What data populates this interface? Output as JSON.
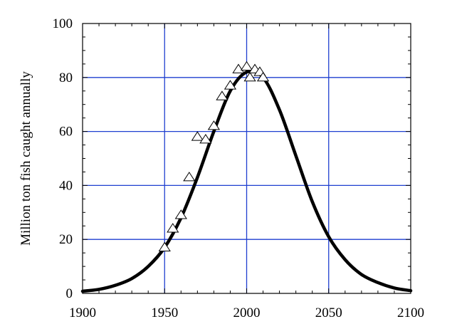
{
  "chart_data": {
    "type": "scatter",
    "title": "",
    "xlabel": "",
    "ylabel": "Million ton fish caught annually",
    "xlim": [
      1900,
      2100
    ],
    "ylim": [
      0,
      100
    ],
    "xticks": [
      1900,
      1950,
      2000,
      2050,
      2100
    ],
    "yticks": [
      0,
      20,
      40,
      60,
      80,
      100
    ],
    "grid": true,
    "grid_color": "#1f3fd0",
    "curve_color": "#000000",
    "marker": "open-triangle",
    "legend": "none",
    "series": [
      {
        "kind": "points",
        "x": [
          1950,
          1955,
          1960,
          1965,
          1970,
          1975,
          1980,
          1985,
          1990,
          1995,
          2000,
          2002,
          2005,
          2008,
          2010
        ],
        "y": [
          17,
          24,
          29,
          43,
          58,
          57,
          62,
          73,
          77,
          83,
          84,
          80,
          83,
          82,
          80
        ]
      },
      {
        "kind": "curve",
        "x": [
          1900,
          1910,
          1920,
          1930,
          1940,
          1950,
          1960,
          1970,
          1980,
          1990,
          2000,
          2010,
          2020,
          2030,
          2040,
          2050,
          2060,
          2070,
          2080,
          2090,
          2100
        ],
        "y": [
          0.8,
          1.5,
          3.0,
          5.5,
          10.0,
          17.0,
          28.0,
          43.0,
          60.0,
          75.0,
          82.0,
          80.0,
          68.0,
          51.0,
          34.0,
          21.0,
          12.5,
          7.0,
          4.0,
          2.0,
          1.0
        ]
      }
    ]
  }
}
